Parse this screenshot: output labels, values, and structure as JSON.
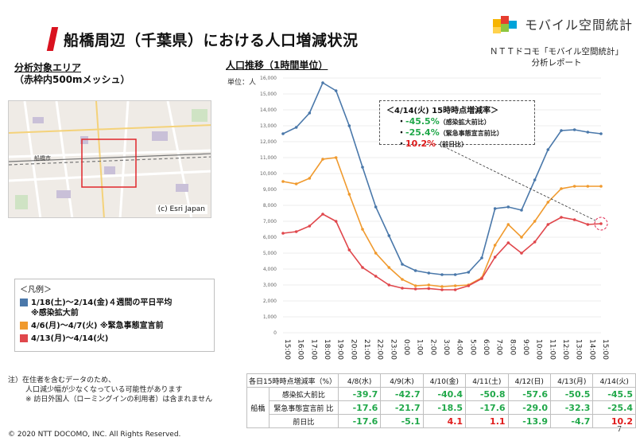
{
  "header": {
    "title": "船橋周辺（千葉県）における人口増減状況",
    "logo_text": "モバイル空間統計",
    "report_line1": "ＮＴＴドコモ「モバイル空間統計」",
    "report_line2": "分析レポート"
  },
  "area": {
    "title": "分析対象エリア",
    "subtitle": "（赤枠内500mメッシュ）",
    "map_credit": "(c) Esri Japan",
    "map_station_label": "船橋市"
  },
  "legend": {
    "heading": "＜凡例＞",
    "items": [
      {
        "label": "1/18(土)～2/14(金)４週間の平日平均",
        "note": "※感染拡大前",
        "color": "#4a78aa"
      },
      {
        "label": "4/6(月)～4/7(火) ※緊急事態宣言前",
        "note": "",
        "color": "#f09a2e"
      },
      {
        "label": "4/13(月)～4/14(火)",
        "note": "",
        "color": "#e0474c"
      }
    ]
  },
  "notes": {
    "line1": "注）在住者を含むデータのため、",
    "line2": "人口減少幅が少なくなっている可能性があります",
    "line3": "※ 訪日外国人（ローミングインの利用者）は含まれません"
  },
  "footer": {
    "copyright": "© 2020 NTT DOCOMO, INC. All Rights Reserved.",
    "page": "7"
  },
  "chart": {
    "title": "人口推移（1時間単位）",
    "unit": "単位：人"
  },
  "callout": {
    "title": "＜4/14(火) 15時時点増減率＞",
    "rows": [
      {
        "value": "-45.5%",
        "label": "（感染拡大前比）",
        "color": "#21a84a"
      },
      {
        "value": "-25.4%",
        "label": "（緊急事態宣言前比）",
        "color": "#21a84a"
      },
      {
        "value": "10.2%",
        "label": "（前日比）",
        "color": "#e01b1b"
      }
    ]
  },
  "chart_data": {
    "type": "line",
    "x": [
      "15:00",
      "16:00",
      "17:00",
      "18:00",
      "19:00",
      "20:00",
      "21:00",
      "22:00",
      "23:00",
      "0:00",
      "1:00",
      "2:00",
      "3:00",
      "4:00",
      "5:00",
      "6:00",
      "7:00",
      "8:00",
      "9:00",
      "10:00",
      "11:00",
      "12:00",
      "13:00",
      "14:00",
      "15:00"
    ],
    "ylim": [
      0,
      16000
    ],
    "yticks": [
      "0",
      "1,000",
      "2,000",
      "3,000",
      "4,000",
      "5,000",
      "6,000",
      "7,000",
      "8,000",
      "9,000",
      "10,000",
      "11,000",
      "12,000",
      "13,000",
      "14,000",
      "15,000",
      "16,000"
    ],
    "series": [
      {
        "color": "#4a78aa",
        "values": [
          12500,
          12900,
          13800,
          15700,
          15200,
          13000,
          10400,
          7900,
          6100,
          4300,
          3900,
          3750,
          3650,
          3650,
          3800,
          4700,
          7800,
          7900,
          7700,
          9600,
          11500,
          12700,
          12750,
          12600,
          12500
        ]
      },
      {
        "color": "#f09a2e",
        "values": [
          9500,
          9350,
          9700,
          10900,
          11000,
          8700,
          6500,
          5000,
          4100,
          3350,
          2950,
          3000,
          2900,
          2950,
          3000,
          3450,
          5500,
          6800,
          6000,
          7000,
          8200,
          9050,
          9200,
          9200,
          9200
        ]
      },
      {
        "color": "#e0474c",
        "values": [
          6250,
          6350,
          6700,
          7450,
          7000,
          5200,
          4100,
          3550,
          3000,
          2800,
          2750,
          2780,
          2700,
          2700,
          2950,
          3400,
          4750,
          5650,
          5000,
          5700,
          6800,
          7250,
          7100,
          6800,
          6850
        ]
      }
    ]
  },
  "table": {
    "header_label": "各日15時時点増減率（%）",
    "dates": [
      "4/8(水)",
      "4/9(木)",
      "4/10(金)",
      "4/11(土)",
      "4/12(日)",
      "4/13(月)",
      "4/14(火)"
    ],
    "place": "船橋",
    "rows": [
      {
        "label": "感染拡大前比",
        "values": [
          "-39.7",
          "-42.7",
          "-40.4",
          "-50.8",
          "-57.6",
          "-50.5",
          "-45.5"
        ]
      },
      {
        "label": "緊急事態宣言前 比",
        "values": [
          "-17.6",
          "-21.7",
          "-18.5",
          "-17.6",
          "-29.0",
          "-32.3",
          "-25.4"
        ]
      },
      {
        "label": "前日比",
        "values": [
          "-17.6",
          "-5.1",
          "4.1",
          "1.1",
          "-13.9",
          "-4.7",
          "10.2"
        ]
      }
    ],
    "positive_color": "#e01b1b",
    "negative_color": "#21a84a"
  }
}
